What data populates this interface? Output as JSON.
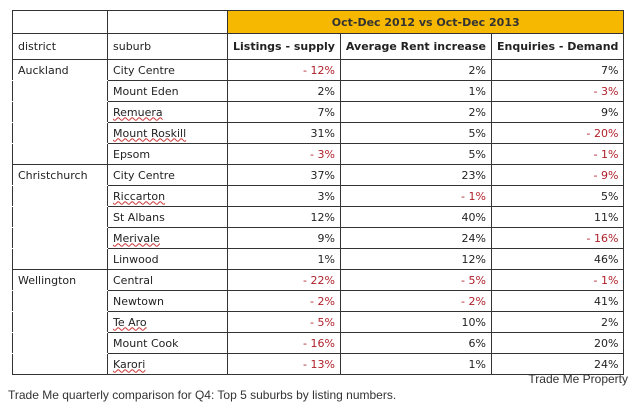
{
  "header": {
    "period": "Oct-Dec 2012 vs Oct-Dec 2013",
    "columns": [
      "district",
      "suburb",
      "Listings - supply",
      "Average Rent increase",
      "Enquiries - Demand"
    ]
  },
  "rows": [
    {
      "district": "Auckland",
      "suburb": "City Centre",
      "listings": "- 12%",
      "rent": "2%",
      "enquiries": "7%"
    },
    {
      "district": "",
      "suburb": "Mount Eden",
      "listings": "2%",
      "rent": "1%",
      "enquiries": "- 3%"
    },
    {
      "district": "",
      "suburb": "Remuera",
      "listings": "7%",
      "rent": "2%",
      "enquiries": "9%"
    },
    {
      "district": "",
      "suburb": "Mount Roskill",
      "listings": "31%",
      "rent": "5%",
      "enquiries": "- 20%"
    },
    {
      "district": "",
      "suburb": "Epsom",
      "listings": "- 3%",
      "rent": "5%",
      "enquiries": "- 1%"
    },
    {
      "district": "Christchurch",
      "suburb": "City Centre",
      "listings": "37%",
      "rent": "23%",
      "enquiries": "- 9%"
    },
    {
      "district": "",
      "suburb": "Riccarton",
      "listings": "3%",
      "rent": "- 1%",
      "enquiries": "5%"
    },
    {
      "district": "",
      "suburb": "St Albans",
      "listings": "12%",
      "rent": "40%",
      "enquiries": "11%"
    },
    {
      "district": "",
      "suburb": "Merivale",
      "listings": "9%",
      "rent": "24%",
      "enquiries": "- 16%"
    },
    {
      "district": "",
      "suburb": "Linwood",
      "listings": "1%",
      "rent": "12%",
      "enquiries": "46%"
    },
    {
      "district": "Wellington",
      "suburb": "Central",
      "listings": "- 22%",
      "rent": "- 5%",
      "enquiries": "- 1%"
    },
    {
      "district": "",
      "suburb": "Newtown",
      "listings": "- 2%",
      "rent": "- 2%",
      "enquiries": "41%"
    },
    {
      "district": "",
      "suburb": "Te Aro",
      "listings": "- 5%",
      "rent": "10%",
      "enquiries": "2%"
    },
    {
      "district": "",
      "suburb": "Mount Cook",
      "listings": "- 16%",
      "rent": "6%",
      "enquiries": "20%"
    },
    {
      "district": "",
      "suburb": "Karori",
      "listings": "- 13%",
      "rent": "1%",
      "enquiries": "24%"
    }
  ],
  "source": "Trade Me Property",
  "caption": "Trade Me quarterly comparison for Q4: Top 5 suburbs by listing numbers."
}
